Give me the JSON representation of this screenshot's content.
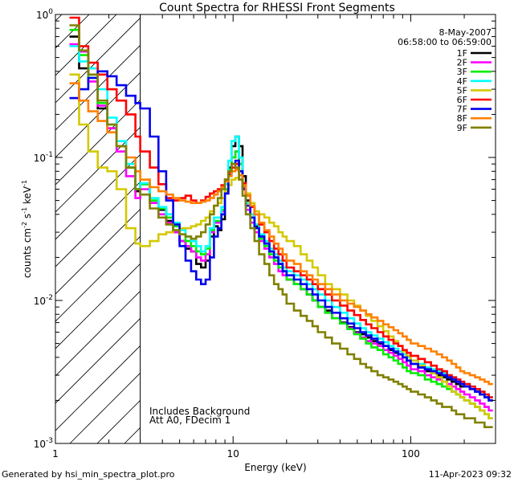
{
  "chart_data": {
    "type": "line",
    "title": "Count Spectra for RHESSI Front Segments",
    "xlabel": "Energy (keV)",
    "ylabel": "counts cm⁻² s⁻¹ keV⁻¹",
    "xscale": "log",
    "yscale": "log",
    "xlim": [
      1.0,
      300
    ],
    "ylim": [
      0.001,
      1.0
    ],
    "x_ticks": [
      {
        "value": 1,
        "label": "1"
      },
      {
        "value": 10,
        "label": "10"
      },
      {
        "value": 100,
        "label": "100"
      }
    ],
    "y_ticks": [
      {
        "value": 1,
        "base": "10",
        "exp": "0"
      },
      {
        "value": 0.1,
        "base": "10",
        "exp": "-1"
      },
      {
        "value": 0.01,
        "base": "10",
        "exp": "-2"
      },
      {
        "value": 0.001,
        "base": "10",
        "exp": "-3"
      }
    ],
    "date": "8-May-2007",
    "time_range": "06:58:00 to 06:59:00",
    "shaded_region": {
      "xmin": 1.0,
      "xmax": 3.0,
      "pattern": "diagonal-hatch"
    },
    "annotations": [
      "Includes Background",
      "Att A0, FDecim 1"
    ],
    "legend_position": "top-right",
    "bin_edges": [
      1.2,
      1.36,
      1.53,
      1.73,
      1.96,
      2.21,
      2.5,
      2.82,
      3.0,
      3.4,
      3.8,
      4.2,
      4.6,
      5.0,
      5.4,
      5.8,
      6.2,
      6.6,
      7.0,
      7.4,
      7.8,
      8.2,
      8.6,
      9.0,
      9.4,
      9.8,
      10.3,
      10.8,
      11.3,
      11.8,
      12.5,
      13.2,
      14.0,
      15.0,
      16.0,
      17.0,
      18.0,
      19.0,
      20.0,
      22.0,
      24.0,
      26.0,
      28.0,
      30.0,
      33.0,
      36.0,
      40.0,
      44.0,
      48.0,
      52.0,
      56.0,
      60.0,
      65.0,
      70.0,
      75.0,
      80.0,
      85.0,
      90.0,
      95.0,
      100.0,
      110.0,
      120.0,
      130.0,
      140.0,
      150.0,
      160.0,
      170.0,
      180.0,
      190.0,
      200.0,
      215.0,
      230.0,
      245.0,
      260.0,
      275.0,
      290.0
    ],
    "series": [
      {
        "name": "1F",
        "color": "#000000",
        "values": [
          0.7,
          0.42,
          0.38,
          0.22,
          0.16,
          0.12,
          0.085,
          0.058,
          0.065,
          0.048,
          0.043,
          0.036,
          0.03,
          0.026,
          0.023,
          0.022,
          0.018,
          0.017,
          0.019,
          0.028,
          0.033,
          0.031,
          0.037,
          0.056,
          0.085,
          0.12,
          0.14,
          0.12,
          0.074,
          0.05,
          0.04,
          0.033,
          0.028,
          0.025,
          0.022,
          0.02,
          0.018,
          0.016,
          0.014,
          0.013,
          0.012,
          0.011,
          0.01,
          0.009,
          0.0085,
          0.0075,
          0.007,
          0.0065,
          0.006,
          0.0058,
          0.0055,
          0.0052,
          0.005,
          0.0048,
          0.0045,
          0.0043,
          0.0042,
          0.004,
          0.0038,
          0.0036,
          0.0034,
          0.0032,
          0.0031,
          0.003,
          0.0029,
          0.0028,
          0.0027,
          0.0026,
          0.0025,
          0.0025,
          0.0024,
          0.0023,
          0.0022,
          0.0021,
          0.002
        ]
      },
      {
        "name": "2F",
        "color": "#ff00ff",
        "values": [
          0.62,
          0.55,
          0.34,
          0.23,
          0.16,
          0.11,
          0.074,
          0.052,
          0.06,
          0.048,
          0.04,
          0.035,
          0.03,
          0.026,
          0.024,
          0.022,
          0.02,
          0.019,
          0.021,
          0.03,
          0.035,
          0.035,
          0.042,
          0.058,
          0.08,
          0.1,
          0.11,
          0.09,
          0.061,
          0.043,
          0.035,
          0.03,
          0.026,
          0.023,
          0.02,
          0.018,
          0.016,
          0.015,
          0.014,
          0.013,
          0.012,
          0.011,
          0.01,
          0.009,
          0.0082,
          0.0075,
          0.0069,
          0.0064,
          0.0059,
          0.0055,
          0.0052,
          0.005,
          0.0048,
          0.0045,
          0.0043,
          0.0041,
          0.0039,
          0.0037,
          0.0035,
          0.0033,
          0.0032,
          0.003,
          0.0029,
          0.0028,
          0.0027,
          0.0026,
          0.0025,
          0.0024,
          0.0023,
          0.0022,
          0.0021,
          0.002,
          0.0019,
          0.0018,
          0.0017
        ]
      },
      {
        "name": "3F",
        "color": "#00ee00",
        "values": [
          0.78,
          0.52,
          0.36,
          0.24,
          0.17,
          0.12,
          0.085,
          0.06,
          0.065,
          0.05,
          0.044,
          0.038,
          0.033,
          0.029,
          0.026,
          0.024,
          0.022,
          0.021,
          0.023,
          0.031,
          0.036,
          0.036,
          0.043,
          0.06,
          0.082,
          0.1,
          0.11,
          0.09,
          0.063,
          0.046,
          0.038,
          0.032,
          0.027,
          0.024,
          0.021,
          0.019,
          0.017,
          0.016,
          0.014,
          0.013,
          0.012,
          0.011,
          0.01,
          0.009,
          0.0082,
          0.0075,
          0.0069,
          0.0063,
          0.0058,
          0.0054,
          0.005,
          0.0047,
          0.0045,
          0.0042,
          0.004,
          0.0038,
          0.0036,
          0.0034,
          0.0032,
          0.0031,
          0.003,
          0.0028,
          0.0027,
          0.0026,
          0.0025,
          0.0024,
          0.0023,
          0.0022,
          0.0021,
          0.002,
          0.0019,
          0.0018,
          0.0017,
          0.0016,
          0.0015
        ]
      },
      {
        "name": "4F",
        "color": "#00ffff",
        "values": [
          0.6,
          0.47,
          0.42,
          0.3,
          0.19,
          0.13,
          0.09,
          0.06,
          0.066,
          0.052,
          0.045,
          0.04,
          0.035,
          0.031,
          0.028,
          0.026,
          0.024,
          0.022,
          0.024,
          0.032,
          0.038,
          0.038,
          0.045,
          0.065,
          0.095,
          0.13,
          0.14,
          0.1,
          0.066,
          0.048,
          0.04,
          0.034,
          0.029,
          0.026,
          0.023,
          0.021,
          0.019,
          0.017,
          0.016,
          0.015,
          0.014,
          0.013,
          0.012,
          0.011,
          0.01,
          0.009,
          0.0082,
          0.0075,
          0.0069,
          0.0064,
          0.006,
          0.0057,
          0.0054,
          0.0051,
          0.0048,
          0.0046,
          0.0044,
          0.0042,
          0.004,
          0.0038,
          0.0036,
          0.0034,
          0.0033,
          0.0032,
          0.0031,
          0.003,
          0.0029,
          0.0028,
          0.0027,
          0.0026,
          0.0025,
          0.0024,
          0.0023,
          0.0022,
          0.0021
        ]
      },
      {
        "name": "5F",
        "color": "#d4c800",
        "values": [
          0.38,
          0.17,
          0.11,
          0.085,
          0.08,
          0.06,
          0.032,
          0.025,
          0.024,
          0.026,
          0.029,
          0.03,
          0.031,
          0.032,
          0.032,
          0.033,
          0.034,
          0.036,
          0.038,
          0.042,
          0.046,
          0.048,
          0.052,
          0.058,
          0.064,
          0.07,
          0.072,
          0.07,
          0.064,
          0.056,
          0.048,
          0.042,
          0.04,
          0.038,
          0.035,
          0.033,
          0.03,
          0.028,
          0.026,
          0.024,
          0.021,
          0.019,
          0.017,
          0.015,
          0.013,
          0.012,
          0.011,
          0.01,
          0.0092,
          0.0085,
          0.0078,
          0.0072,
          0.0066,
          0.0061,
          0.0056,
          0.0052,
          0.0048,
          0.0044,
          0.0041,
          0.0038,
          0.0035,
          0.0033,
          0.0031,
          0.0029,
          0.0027,
          0.0025,
          0.0023,
          0.0022,
          0.0021,
          0.002,
          0.0019,
          0.0018,
          0.0017,
          0.0016,
          0.0015
        ]
      },
      {
        "name": "6F",
        "color": "#ff0000",
        "values": [
          0.95,
          0.6,
          0.46,
          0.38,
          0.3,
          0.25,
          0.2,
          0.14,
          0.11,
          0.085,
          0.065,
          0.052,
          0.05,
          0.052,
          0.054,
          0.05,
          0.048,
          0.05,
          0.053,
          0.056,
          0.058,
          0.06,
          0.064,
          0.07,
          0.078,
          0.085,
          0.09,
          0.08,
          0.066,
          0.054,
          0.045,
          0.04,
          0.034,
          0.03,
          0.026,
          0.023,
          0.021,
          0.019,
          0.017,
          0.016,
          0.015,
          0.014,
          0.013,
          0.012,
          0.011,
          0.01,
          0.0092,
          0.0085,
          0.0079,
          0.0073,
          0.0068,
          0.0064,
          0.006,
          0.0056,
          0.0053,
          0.005,
          0.0048,
          0.0045,
          0.0043,
          0.0041,
          0.0039,
          0.0037,
          0.0035,
          0.0033,
          0.0032,
          0.003,
          0.0029,
          0.0028,
          0.0027,
          0.0026,
          0.0025,
          0.0024,
          0.0023,
          0.0022,
          0.0021
        ]
      },
      {
        "name": "7F",
        "color": "#0000ee",
        "values": [
          0.26,
          0.3,
          0.36,
          0.4,
          0.37,
          0.32,
          0.27,
          0.24,
          0.22,
          0.14,
          0.08,
          0.05,
          0.034,
          0.024,
          0.019,
          0.016,
          0.014,
          0.013,
          0.014,
          0.02,
          0.028,
          0.032,
          0.04,
          0.056,
          0.075,
          0.09,
          0.095,
          0.08,
          0.06,
          0.046,
          0.038,
          0.032,
          0.028,
          0.025,
          0.022,
          0.02,
          0.018,
          0.016,
          0.015,
          0.014,
          0.013,
          0.012,
          0.011,
          0.01,
          0.009,
          0.0082,
          0.0075,
          0.0069,
          0.0064,
          0.006,
          0.0057,
          0.0054,
          0.0051,
          0.0048,
          0.0046,
          0.0044,
          0.0042,
          0.004,
          0.0038,
          0.0036,
          0.0034,
          0.0033,
          0.0032,
          0.0031,
          0.003,
          0.0029,
          0.0028,
          0.0027,
          0.0026,
          0.0025,
          0.0024,
          0.0023,
          0.0022,
          0.0021,
          0.002
        ]
      },
      {
        "name": "8F",
        "color": "#ff8000",
        "values": [
          0.33,
          0.25,
          0.21,
          0.18,
          0.15,
          0.12,
          0.1,
          0.08,
          0.07,
          0.062,
          0.058,
          0.055,
          0.052,
          0.05,
          0.049,
          0.048,
          0.048,
          0.049,
          0.05,
          0.052,
          0.055,
          0.058,
          0.062,
          0.068,
          0.074,
          0.08,
          0.082,
          0.075,
          0.064,
          0.054,
          0.046,
          0.04,
          0.035,
          0.031,
          0.028,
          0.025,
          0.023,
          0.021,
          0.019,
          0.018,
          0.016,
          0.015,
          0.014,
          0.013,
          0.012,
          0.011,
          0.01,
          0.0095,
          0.009,
          0.0085,
          0.008,
          0.0076,
          0.0072,
          0.0068,
          0.0065,
          0.0062,
          0.0059,
          0.0056,
          0.0053,
          0.005,
          0.0048,
          0.0046,
          0.0044,
          0.0042,
          0.004,
          0.0038,
          0.0036,
          0.0034,
          0.0032,
          0.0031,
          0.003,
          0.0029,
          0.0028,
          0.0027,
          0.0026
        ]
      },
      {
        "name": "9F",
        "color": "#808000",
        "values": [
          0.84,
          0.56,
          0.38,
          0.25,
          0.17,
          0.12,
          0.085,
          0.06,
          0.055,
          0.044,
          0.038,
          0.034,
          0.031,
          0.029,
          0.028,
          0.027,
          0.028,
          0.03,
          0.034,
          0.04,
          0.046,
          0.052,
          0.06,
          0.07,
          0.08,
          0.09,
          0.085,
          0.07,
          0.054,
          0.04,
          0.032,
          0.026,
          0.021,
          0.018,
          0.015,
          0.013,
          0.012,
          0.011,
          0.0095,
          0.0085,
          0.0078,
          0.0072,
          0.0066,
          0.006,
          0.0055,
          0.005,
          0.0046,
          0.0042,
          0.0039,
          0.0036,
          0.0034,
          0.0032,
          0.003,
          0.0029,
          0.0028,
          0.0027,
          0.0026,
          0.0025,
          0.0024,
          0.0023,
          0.0022,
          0.0021,
          0.002,
          0.0019,
          0.0018,
          0.0018,
          0.0017,
          0.0016,
          0.0016,
          0.0015,
          0.0015,
          0.0014,
          0.0014,
          0.0013,
          0.0013
        ]
      }
    ]
  },
  "footer": {
    "left": "Generated by hsi_min_spectra_plot.pro",
    "right": "11-Apr-2023 09:32"
  }
}
